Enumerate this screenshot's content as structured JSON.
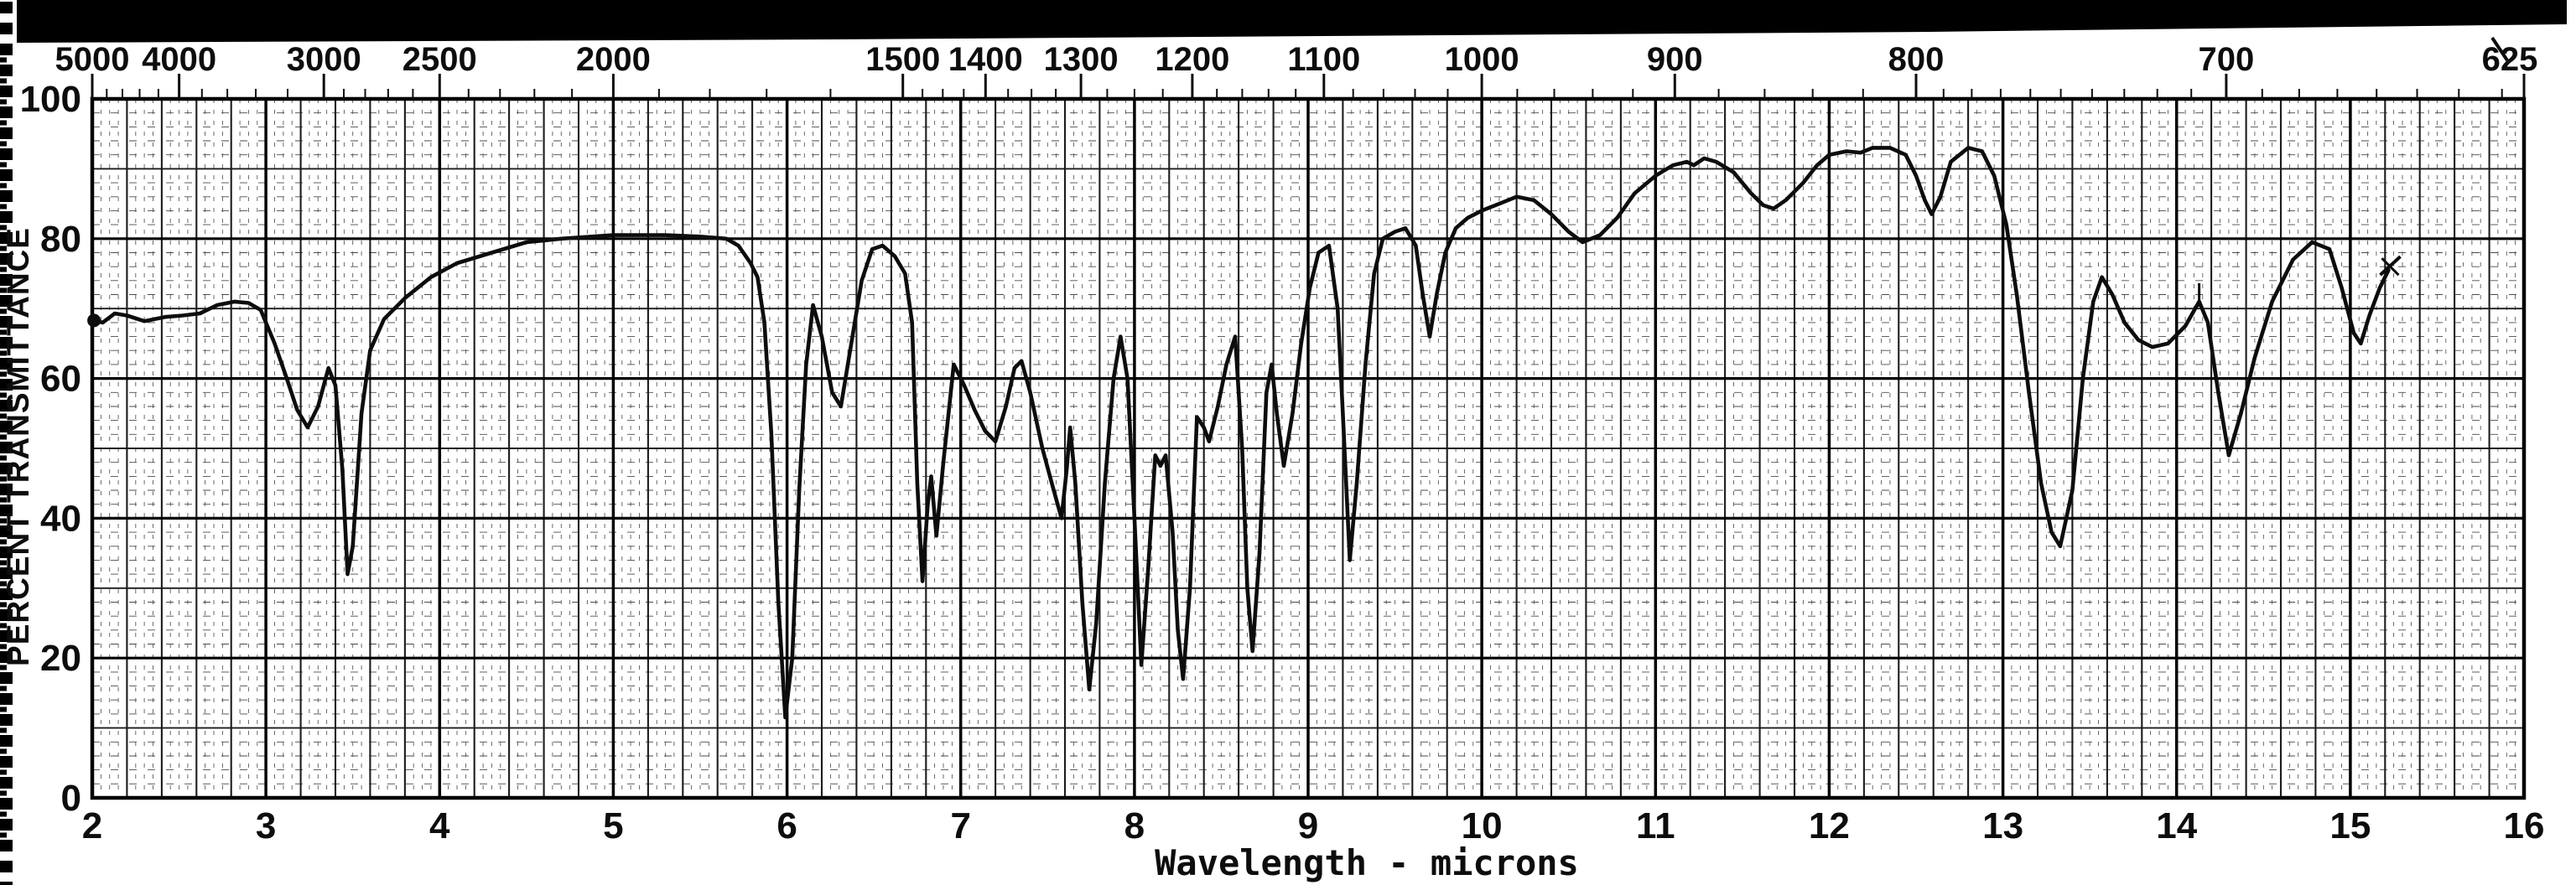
{
  "page": {
    "background": "#ffffff",
    "scan_artifacts": {
      "top_bar_color": "#000000",
      "film_strip_edge": "left",
      "stray_pen_mark": true
    }
  },
  "colors": {
    "ink": "#0d0d0d",
    "grid_major": "#000000",
    "grid_mid": "#1c1c1c",
    "grid_minor_v": "#5a5a5a",
    "grid_minor_h": "#4a4a4a",
    "paper": "#ffffff"
  },
  "chart_data": {
    "type": "line",
    "title": "",
    "xlabel": "Wavelength - microns",
    "ylabel": "PERCENT TRANSMITTANCE",
    "grid": {
      "x_minor_step": 0.05,
      "x_mid_step": 0.2,
      "x_major_step": 1,
      "y_minor_step": 2,
      "y_mid_step": 10,
      "y_major_step": 20,
      "grid_on": true
    },
    "x_axis": {
      "min": 2,
      "max": 16,
      "tick_values": [
        2,
        3,
        4,
        5,
        6,
        7,
        8,
        9,
        10,
        11,
        12,
        13,
        14,
        15,
        16
      ],
      "tick_labels": [
        "2",
        "3",
        "4",
        "5",
        "6",
        "7",
        "8",
        "9",
        "10",
        "11",
        "12",
        "13",
        "14",
        "15",
        "16"
      ]
    },
    "y_axis": {
      "min": 0,
      "max": 100,
      "tick_values": [
        100,
        80,
        60,
        40,
        20,
        0
      ],
      "tick_labels": [
        "100",
        "80",
        "60",
        "40",
        "20",
        "0"
      ]
    },
    "top_axis": {
      "major_ticks": [
        {
          "label": "5000",
          "wavenumber": 5000
        },
        {
          "label": "4000",
          "wavenumber": 4000
        },
        {
          "label": "3000",
          "wavenumber": 3000
        },
        {
          "label": "2500",
          "wavenumber": 2500
        },
        {
          "label": "2000",
          "wavenumber": 2000
        },
        {
          "label": "1500",
          "wavenumber": 1500
        },
        {
          "label": "1400",
          "wavenumber": 1400
        },
        {
          "label": "1300",
          "wavenumber": 1300
        },
        {
          "label": "1200",
          "wavenumber": 1200
        },
        {
          "label": "1100",
          "wavenumber": 1100
        },
        {
          "label": "1000",
          "wavenumber": 1000
        },
        {
          "label": "900",
          "wavenumber": 900
        },
        {
          "label": "800",
          "wavenumber": 800
        },
        {
          "label": "700",
          "wavenumber": 700
        },
        {
          "label": "625",
          "wavenumber": 625
        }
      ],
      "minor_tick_wavenumbers": [
        4800,
        4600,
        4400,
        4200,
        3800,
        3600,
        3400,
        3200,
        2900,
        2800,
        2700,
        2600,
        2400,
        2300,
        2200,
        2100,
        1900,
        1800,
        1700,
        1600,
        1475,
        1450,
        1425,
        1375,
        1350,
        1325,
        1275,
        1250,
        1225,
        1180,
        1160,
        1140,
        1120,
        1080,
        1060,
        1040,
        1020,
        980,
        960,
        940,
        920,
        880,
        860,
        840,
        820,
        790,
        780,
        770,
        760,
        750,
        740,
        730,
        720,
        710,
        690,
        680,
        670,
        660,
        650,
        640,
        630
      ]
    },
    "series": [
      {
        "name": "ir-transmittance-trace",
        "points": [
          [
            2.0,
            68.3
          ],
          [
            2.06,
            68.0
          ],
          [
            2.13,
            69.3
          ],
          [
            2.2,
            69.0
          ],
          [
            2.3,
            68.2
          ],
          [
            2.42,
            68.8
          ],
          [
            2.52,
            69.0
          ],
          [
            2.62,
            69.3
          ],
          [
            2.72,
            70.5
          ],
          [
            2.82,
            71.0
          ],
          [
            2.9,
            70.8
          ],
          [
            2.97,
            69.8
          ],
          [
            3.05,
            65.0
          ],
          [
            3.12,
            60.0
          ],
          [
            3.18,
            55.5
          ],
          [
            3.24,
            53.0
          ],
          [
            3.3,
            56.0
          ],
          [
            3.36,
            61.5
          ],
          [
            3.4,
            59.0
          ],
          [
            3.44,
            47.0
          ],
          [
            3.47,
            32.0
          ],
          [
            3.5,
            36.0
          ],
          [
            3.55,
            55.0
          ],
          [
            3.6,
            64.0
          ],
          [
            3.68,
            68.5
          ],
          [
            3.8,
            71.5
          ],
          [
            3.95,
            74.5
          ],
          [
            4.1,
            76.5
          ],
          [
            4.3,
            78.0
          ],
          [
            4.5,
            79.5
          ],
          [
            4.7,
            80.0
          ],
          [
            5.0,
            80.5
          ],
          [
            5.3,
            80.5
          ],
          [
            5.5,
            80.3
          ],
          [
            5.65,
            80.0
          ],
          [
            5.72,
            79.0
          ],
          [
            5.79,
            76.5
          ],
          [
            5.83,
            74.5
          ],
          [
            5.87,
            68.0
          ],
          [
            5.91,
            52.0
          ],
          [
            5.95,
            28.0
          ],
          [
            5.99,
            11.5
          ],
          [
            6.03,
            20.0
          ],
          [
            6.07,
            44.0
          ],
          [
            6.11,
            62.0
          ],
          [
            6.15,
            70.5
          ],
          [
            6.2,
            66.0
          ],
          [
            6.26,
            58.0
          ],
          [
            6.31,
            56.0
          ],
          [
            6.37,
            65.0
          ],
          [
            6.43,
            74.0
          ],
          [
            6.49,
            78.5
          ],
          [
            6.55,
            79.0
          ],
          [
            6.62,
            77.5
          ],
          [
            6.68,
            75.0
          ],
          [
            6.72,
            68.0
          ],
          [
            6.75,
            45.0
          ],
          [
            6.78,
            31.0
          ],
          [
            6.81,
            42.0
          ],
          [
            6.83,
            46.0
          ],
          [
            6.86,
            37.5
          ],
          [
            6.9,
            48.0
          ],
          [
            6.96,
            62.0
          ],
          [
            7.02,
            59.0
          ],
          [
            7.08,
            55.5
          ],
          [
            7.14,
            52.5
          ],
          [
            7.2,
            51.0
          ],
          [
            7.26,
            56.0
          ],
          [
            7.31,
            61.5
          ],
          [
            7.35,
            62.5
          ],
          [
            7.4,
            58.0
          ],
          [
            7.47,
            50.0
          ],
          [
            7.53,
            44.5
          ],
          [
            7.58,
            40.0
          ],
          [
            7.61,
            47.0
          ],
          [
            7.63,
            53.0
          ],
          [
            7.66,
            45.0
          ],
          [
            7.7,
            28.0
          ],
          [
            7.74,
            15.5
          ],
          [
            7.78,
            25.0
          ],
          [
            7.83,
            45.0
          ],
          [
            7.88,
            60.0
          ],
          [
            7.92,
            66.0
          ],
          [
            7.96,
            60.0
          ],
          [
            8.0,
            40.0
          ],
          [
            8.04,
            19.0
          ],
          [
            8.08,
            33.0
          ],
          [
            8.12,
            49.0
          ],
          [
            8.15,
            47.5
          ],
          [
            8.18,
            49.0
          ],
          [
            8.22,
            38.0
          ],
          [
            8.25,
            24.0
          ],
          [
            8.28,
            17.0
          ],
          [
            8.32,
            30.0
          ],
          [
            8.36,
            54.5
          ],
          [
            8.4,
            53.0
          ],
          [
            8.43,
            51.0
          ],
          [
            8.48,
            56.0
          ],
          [
            8.53,
            62.0
          ],
          [
            8.58,
            66.0
          ],
          [
            8.62,
            50.0
          ],
          [
            8.65,
            30.0
          ],
          [
            8.68,
            21.0
          ],
          [
            8.72,
            35.0
          ],
          [
            8.76,
            58.0
          ],
          [
            8.79,
            62.0
          ],
          [
            8.82,
            55.0
          ],
          [
            8.86,
            47.5
          ],
          [
            8.91,
            55.0
          ],
          [
            8.96,
            65.0
          ],
          [
            9.01,
            73.0
          ],
          [
            9.06,
            78.0
          ],
          [
            9.12,
            79.0
          ],
          [
            9.17,
            70.0
          ],
          [
            9.2,
            55.0
          ],
          [
            9.24,
            34.0
          ],
          [
            9.28,
            45.0
          ],
          [
            9.33,
            62.0
          ],
          [
            9.38,
            75.0
          ],
          [
            9.43,
            80.0
          ],
          [
            9.5,
            81.0
          ],
          [
            9.56,
            81.5
          ],
          [
            9.62,
            79.0
          ],
          [
            9.66,
            72.0
          ],
          [
            9.7,
            66.0
          ],
          [
            9.74,
            72.0
          ],
          [
            9.79,
            78.0
          ],
          [
            9.85,
            81.5
          ],
          [
            9.92,
            83.0
          ],
          [
            10.0,
            84.0
          ],
          [
            10.1,
            85.0
          ],
          [
            10.2,
            86.0
          ],
          [
            10.3,
            85.5
          ],
          [
            10.4,
            83.5
          ],
          [
            10.5,
            81.0
          ],
          [
            10.58,
            79.5
          ],
          [
            10.68,
            80.5
          ],
          [
            10.78,
            83.0
          ],
          [
            10.88,
            86.5
          ],
          [
            11.0,
            89.0
          ],
          [
            11.1,
            90.5
          ],
          [
            11.18,
            91.0
          ],
          [
            11.22,
            90.5
          ],
          [
            11.28,
            91.5
          ],
          [
            11.35,
            91.0
          ],
          [
            11.45,
            89.5
          ],
          [
            11.55,
            86.5
          ],
          [
            11.62,
            84.8
          ],
          [
            11.68,
            84.3
          ],
          [
            11.75,
            85.5
          ],
          [
            11.85,
            88.0
          ],
          [
            11.93,
            90.5
          ],
          [
            12.0,
            92.0
          ],
          [
            12.1,
            92.5
          ],
          [
            12.18,
            92.3
          ],
          [
            12.25,
            93.0
          ],
          [
            12.35,
            93.0
          ],
          [
            12.44,
            92.0
          ],
          [
            12.5,
            89.0
          ],
          [
            12.55,
            85.5
          ],
          [
            12.59,
            83.5
          ],
          [
            12.64,
            86.0
          ],
          [
            12.7,
            91.0
          ],
          [
            12.8,
            93.0
          ],
          [
            12.88,
            92.5
          ],
          [
            12.95,
            89.0
          ],
          [
            13.02,
            82.0
          ],
          [
            13.08,
            72.0
          ],
          [
            13.15,
            58.0
          ],
          [
            13.22,
            45.0
          ],
          [
            13.28,
            38.0
          ],
          [
            13.33,
            36.0
          ],
          [
            13.4,
            44.0
          ],
          [
            13.46,
            60.0
          ],
          [
            13.52,
            71.0
          ],
          [
            13.57,
            74.5
          ],
          [
            13.63,
            72.0
          ],
          [
            13.7,
            68.0
          ],
          [
            13.78,
            65.5
          ],
          [
            13.86,
            64.5
          ],
          [
            13.95,
            65.0
          ],
          [
            14.05,
            67.5
          ],
          [
            14.13,
            71.0
          ],
          [
            14.18,
            68.0
          ],
          [
            14.24,
            58.0
          ],
          [
            14.3,
            49.0
          ],
          [
            14.37,
            55.0
          ],
          [
            14.45,
            63.0
          ],
          [
            14.55,
            71.0
          ],
          [
            14.67,
            77.0
          ],
          [
            14.78,
            79.5
          ],
          [
            14.88,
            78.5
          ],
          [
            14.95,
            73.0
          ],
          [
            15.02,
            66.5
          ],
          [
            15.06,
            65.0
          ],
          [
            15.11,
            69.0
          ],
          [
            15.17,
            73.0
          ],
          [
            15.22,
            75.5
          ]
        ]
      }
    ],
    "annotations": {
      "trace_start_dot": [
        2.01,
        68.3
      ],
      "peak_cross_mark": [
        14.13,
        71.0
      ],
      "trace_end_cross": [
        15.23,
        76.0
      ]
    }
  }
}
